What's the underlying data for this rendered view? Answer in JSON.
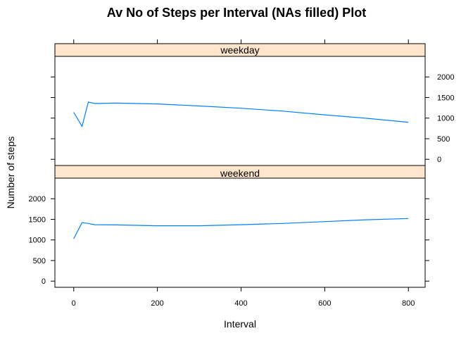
{
  "chart_data": {
    "type": "line",
    "title": "Av No of Steps per Interval (NAs filled) Plot",
    "xlabel": "Interval",
    "ylabel": "Number of steps",
    "xlim": [
      -45,
      840
    ],
    "ylim": [
      -150,
      2500
    ],
    "x_ticks": [
      0,
      200,
      400,
      600,
      800
    ],
    "y_ticks": [
      0,
      500,
      1000,
      1500,
      2000
    ],
    "color": "#0080ff",
    "strip_color": "#ffe5cc",
    "panels": [
      {
        "strip": "weekday",
        "x": [
          0,
          20,
          35,
          50,
          100,
          200,
          300,
          400,
          500,
          600,
          700,
          800
        ],
        "values": [
          1140,
          800,
          1390,
          1355,
          1365,
          1345,
          1295,
          1240,
          1170,
          1080,
          995,
          900
        ]
      },
      {
        "strip": "weekend",
        "x": [
          0,
          20,
          35,
          50,
          100,
          200,
          300,
          400,
          500,
          600,
          700,
          800
        ],
        "values": [
          1030,
          1420,
          1400,
          1370,
          1365,
          1345,
          1345,
          1370,
          1400,
          1445,
          1490,
          1520
        ]
      }
    ]
  }
}
